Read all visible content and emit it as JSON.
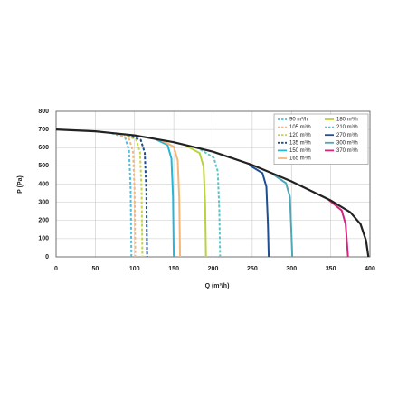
{
  "chart_data": {
    "type": "line",
    "x_label": "Q (m³/h)",
    "y_label": "P (Pa)",
    "xlim": [
      0,
      400
    ],
    "xticks": [
      0,
      50,
      100,
      150,
      200,
      250,
      300,
      350,
      400
    ],
    "ylim": [
      0,
      800
    ],
    "yticks": [
      0,
      100,
      200,
      300,
      400,
      500,
      600,
      700,
      800
    ],
    "grid": true,
    "legend": "upper right",
    "series": [
      {
        "name": "90 m³/h",
        "color": "#4dbfe0",
        "dashed": true,
        "x": [
          71,
          88,
          93,
          95,
          96
        ],
        "values": [
          680,
          655,
          585,
          375,
          0
        ]
      },
      {
        "name": "105 m³/h",
        "color": "#f3b77a",
        "dashed": true,
        "x": [
          76,
          93,
          98,
          100,
          101
        ],
        "values": [
          678,
          650,
          580,
          370,
          0
        ]
      },
      {
        "name": "120 m³/h",
        "color": "#c6d64a",
        "dashed": true,
        "x": [
          85,
          102,
          107,
          109,
          110
        ],
        "values": [
          675,
          645,
          575,
          365,
          0
        ]
      },
      {
        "name": "135 m³/h",
        "color": "#1d4f91",
        "dashed": true,
        "x": [
          91,
          108,
          113,
          115,
          116
        ],
        "values": [
          672,
          642,
          572,
          362,
          0
        ]
      },
      {
        "name": "150 m³/h",
        "color": "#27b6d6",
        "dashed": false,
        "x": [
          125,
          142,
          147,
          149,
          150
        ],
        "values": [
          650,
          615,
          540,
          330,
          0
        ]
      },
      {
        "name": "165 m³/h",
        "color": "#f3b77a",
        "dashed": false,
        "x": [
          133,
          150,
          155,
          157,
          158
        ],
        "values": [
          643,
          605,
          530,
          320,
          0
        ]
      },
      {
        "name": "180 m³/h",
        "color": "#b9d33c",
        "dashed": false,
        "x": [
          166,
          183,
          188,
          190,
          191
        ],
        "values": [
          610,
          570,
          495,
          285,
          0
        ]
      },
      {
        "name": "210 m³/h",
        "color": "#5cc3c9",
        "dashed": true,
        "x": [
          184,
          201,
          206,
          208,
          209
        ],
        "values": [
          590,
          545,
          470,
          260,
          0
        ]
      },
      {
        "name": "270 m³/h",
        "color": "#1d4f91",
        "dashed": false,
        "x": [
          246,
          263,
          268,
          270,
          271
        ],
        "values": [
          505,
          460,
          385,
          175,
          0
        ]
      },
      {
        "name": "300 m³/h",
        "color": "#4fa6b5",
        "dashed": false,
        "x": [
          276,
          293,
          298,
          300,
          301
        ],
        "values": [
          455,
          405,
          330,
          120,
          0
        ]
      },
      {
        "name": "370 m³/h",
        "color": "#d6247f",
        "dashed": false,
        "x": [
          347,
          364,
          369,
          371,
          372
        ],
        "values": [
          315,
          255,
          180,
          60,
          0
        ]
      },
      {
        "color": "#222222",
        "dashed": false,
        "x": [
          0,
          50,
          100,
          150,
          200,
          250,
          300,
          350,
          375,
          388,
          395,
          398
        ],
        "values": [
          700,
          690,
          668,
          630,
          578,
          505,
          415,
          310,
          245,
          180,
          90,
          0
        ]
      }
    ]
  }
}
